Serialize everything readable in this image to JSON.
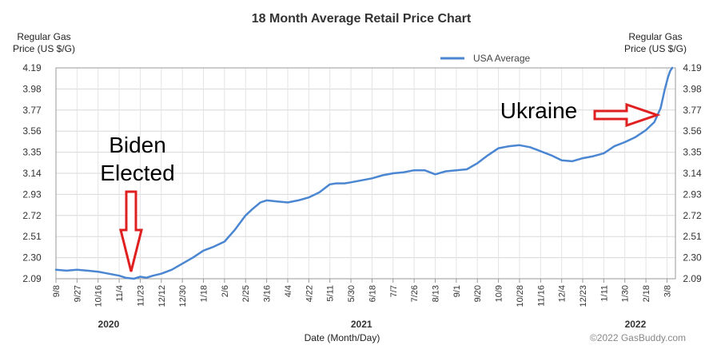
{
  "chart_data": {
    "type": "line",
    "title": "18 Month Average Retail Price Chart",
    "ylabel_left": [
      "Regular Gas",
      "Price (US $/G)"
    ],
    "ylabel_right": [
      "Regular Gas",
      "Price (US $/G)"
    ],
    "xlabel": "Date (Month/Day)",
    "yticks": [
      "2.09",
      "2.30",
      "2.51",
      "2.72",
      "2.93",
      "3.14",
      "3.35",
      "3.56",
      "3.77",
      "3.98",
      "4.19"
    ],
    "ylim": [
      2.09,
      4.19
    ],
    "grid": true,
    "legend_position": "top",
    "x_tick_labels": [
      "9/8",
      "9/27",
      "10/16",
      "11/4",
      "11/23",
      "12/12",
      "12/30",
      "1/18",
      "2/6",
      "2/25",
      "3/16",
      "4/4",
      "4/22",
      "5/11",
      "5/30",
      "6/18",
      "7/7",
      "7/26",
      "8/13",
      "9/1",
      "9/20",
      "10/9",
      "10/28",
      "11/16",
      "12/4",
      "12/23",
      "1/11",
      "1/30",
      "2/18",
      "3/8"
    ],
    "years": [
      {
        "label": "2020",
        "tick_index": 2.5
      },
      {
        "label": "2021",
        "tick_index": 14.5
      },
      {
        "label": "2022",
        "tick_index": 27.5
      }
    ],
    "series": [
      {
        "name": "USA Average",
        "color": "#4a86d1",
        "x": [
          0,
          0.5,
          1,
          1.5,
          2,
          2.5,
          3,
          3.3,
          3.7,
          4,
          4.3,
          4.6,
          5,
          5.5,
          6,
          6.5,
          7,
          7.5,
          8,
          8.5,
          9,
          9.3,
          9.7,
          10,
          10.5,
          11,
          11.5,
          12,
          12.5,
          13,
          13.3,
          13.7,
          14,
          14.5,
          15,
          15.5,
          16,
          16.5,
          17,
          17.5,
          18,
          18.5,
          19,
          19.5,
          20,
          20.5,
          21,
          21.5,
          22,
          22.5,
          23,
          23.5,
          24,
          24.5,
          25,
          25.5,
          26,
          26.5,
          27,
          27.5,
          28,
          28.4,
          28.7,
          28.9,
          29.05,
          29.15,
          29.25
        ],
        "values": [
          2.18,
          2.17,
          2.18,
          2.17,
          2.16,
          2.14,
          2.12,
          2.1,
          2.09,
          2.11,
          2.1,
          2.12,
          2.14,
          2.18,
          2.24,
          2.3,
          2.37,
          2.41,
          2.46,
          2.58,
          2.72,
          2.78,
          2.85,
          2.87,
          2.86,
          2.85,
          2.87,
          2.9,
          2.95,
          3.03,
          3.04,
          3.04,
          3.05,
          3.07,
          3.09,
          3.12,
          3.14,
          3.15,
          3.17,
          3.17,
          3.13,
          3.16,
          3.17,
          3.18,
          3.24,
          3.32,
          3.39,
          3.41,
          3.42,
          3.4,
          3.36,
          3.32,
          3.27,
          3.26,
          3.29,
          3.31,
          3.34,
          3.41,
          3.45,
          3.5,
          3.57,
          3.65,
          3.79,
          3.98,
          4.1,
          4.16,
          4.19
        ]
      }
    ],
    "annotations": [
      {
        "id": "biden",
        "lines": [
          "Biden",
          "Elected"
        ],
        "arrow": "down"
      },
      {
        "id": "ukraine",
        "lines": [
          "Ukraine"
        ],
        "arrow": "right"
      }
    ],
    "copyright": "©2022 GasBuddy.com"
  }
}
